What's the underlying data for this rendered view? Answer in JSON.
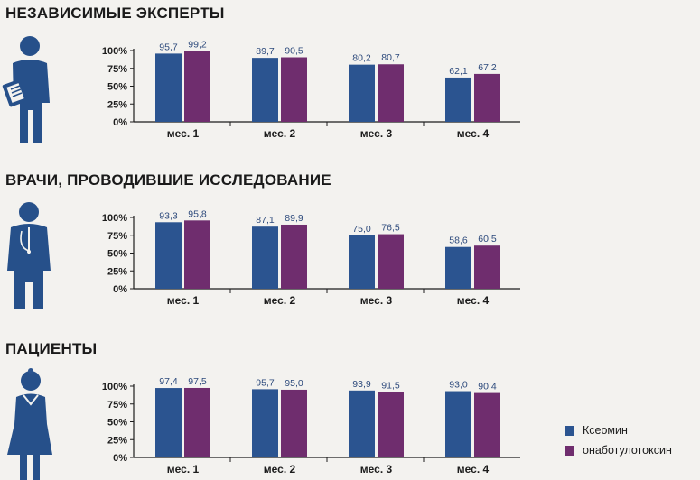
{
  "colors": {
    "xeomin": "#2b5490",
    "ona": "#6f2d6e",
    "figure": "#26508a"
  },
  "legend": {
    "items": [
      "Ксеомин",
      "онаботулотоксин"
    ]
  },
  "chart_data": [
    {
      "type": "bar",
      "title": "НЕЗАВИСИМЫЕ ЭКСПЕРТЫ",
      "categories": [
        "мес. 1",
        "мес. 2",
        "мес. 3",
        "мес. 4"
      ],
      "series": [
        {
          "name": "Ксеомин",
          "values": [
            95.7,
            89.7,
            80.2,
            62.1
          ],
          "labels": [
            "95,7",
            "89,7",
            "80,2",
            "62,1"
          ]
        },
        {
          "name": "онаботулотоксин",
          "values": [
            99.2,
            90.5,
            80.7,
            67.2
          ],
          "labels": [
            "99,2",
            "90,5",
            "80,7",
            "67,2"
          ]
        }
      ],
      "yticks": [
        "0%",
        "25%",
        "50%",
        "75%",
        "100%"
      ],
      "ylim": [
        0,
        100
      ],
      "grid": false,
      "icon": "expert-figure-icon"
    },
    {
      "type": "bar",
      "title": "ВРАЧИ, ПРОВОДИВШИЕ ИССЛЕДОВАНИЕ",
      "categories": [
        "мес. 1",
        "мес. 2",
        "мес. 3",
        "мес. 4"
      ],
      "series": [
        {
          "name": "Ксеомин",
          "values": [
            93.3,
            87.1,
            75.0,
            58.6
          ],
          "labels": [
            "93,3",
            "87,1",
            "75,0",
            "58,6"
          ]
        },
        {
          "name": "онаботулотоксин",
          "values": [
            95.8,
            89.9,
            76.5,
            60.5
          ],
          "labels": [
            "95,8",
            "89,9",
            "76,5",
            "60,5"
          ]
        }
      ],
      "yticks": [
        "0%",
        "25%",
        "50%",
        "75%",
        "100%"
      ],
      "ylim": [
        0,
        100
      ],
      "grid": false,
      "icon": "doctor-figure-icon"
    },
    {
      "type": "bar",
      "title": "ПАЦИЕНТЫ",
      "categories": [
        "мес. 1",
        "мес. 2",
        "мес. 3",
        "мес. 4"
      ],
      "series": [
        {
          "name": "Ксеомин",
          "values": [
            97.4,
            95.7,
            93.9,
            93.0
          ],
          "labels": [
            "97,4",
            "95,7",
            "93,9",
            "93,0"
          ]
        },
        {
          "name": "онаботулотоксин",
          "values": [
            97.5,
            95.0,
            91.5,
            90.4
          ],
          "labels": [
            "97,5",
            "95,0",
            "91,5",
            "90,4"
          ]
        }
      ],
      "yticks": [
        "0%",
        "25%",
        "50%",
        "75%",
        "100%"
      ],
      "ylim": [
        0,
        100
      ],
      "grid": false,
      "legend_position": "bottom-right",
      "icon": "patient-figure-icon"
    }
  ]
}
